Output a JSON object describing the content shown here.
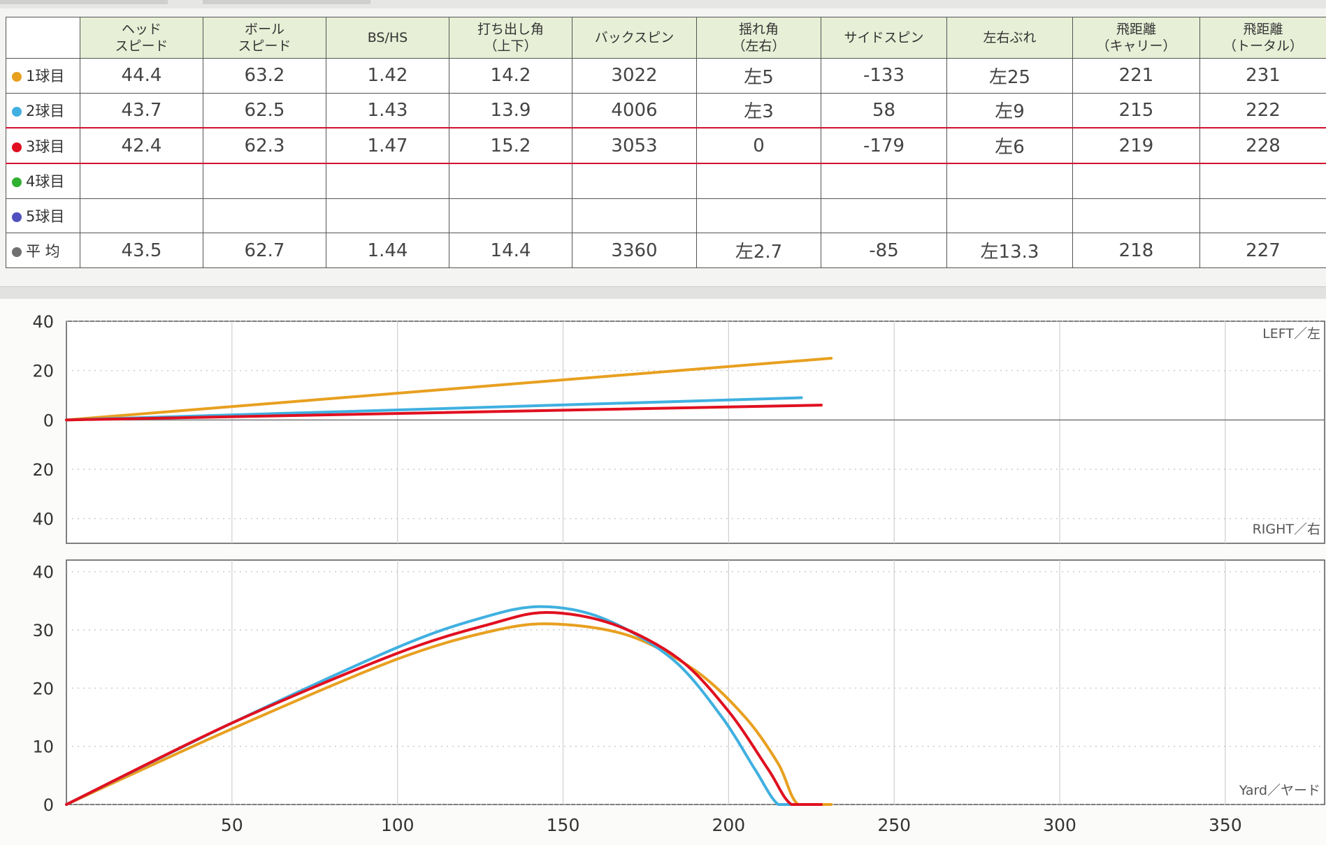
{
  "table": {
    "headers": [
      {
        "l1": "ヘッド",
        "l2": "スピード"
      },
      {
        "l1": "ボール",
        "l2": "スピード"
      },
      {
        "l1": "BS/HS",
        "l2": ""
      },
      {
        "l1": "打ち出し角",
        "l2": "（上下）"
      },
      {
        "l1": "バックスピン",
        "l2": ""
      },
      {
        "l1": "揺れ角",
        "l2": "（左右）"
      },
      {
        "l1": "サイドスピン",
        "l2": ""
      },
      {
        "l1": "左右ぶれ",
        "l2": ""
      },
      {
        "l1": "飛距離",
        "l2": "（キャリー）"
      },
      {
        "l1": "飛距離",
        "l2": "（トータル）"
      }
    ],
    "rows": [
      {
        "label": "1球目",
        "color": "#e8a020",
        "values": [
          "44.4",
          "63.2",
          "1.42",
          "14.2",
          "3022",
          "左5",
          "-133",
          "左25",
          "221",
          "231"
        ]
      },
      {
        "label": "2球目",
        "color": "#40b0e0",
        "values": [
          "43.7",
          "62.5",
          "1.43",
          "13.9",
          "4006",
          "左3",
          "58",
          "左9",
          "215",
          "222"
        ]
      },
      {
        "label": "3球目",
        "color": "#e01020",
        "values": [
          "42.4",
          "62.3",
          "1.47",
          "15.2",
          "3053",
          "0",
          "-179",
          "左6",
          "219",
          "228"
        ]
      },
      {
        "label": "4球目",
        "color": "#30b030",
        "values": [
          "",
          "",
          "",
          "",
          "",
          "",
          "",
          "",
          "",
          ""
        ]
      },
      {
        "label": "5球目",
        "color": "#5050c0",
        "values": [
          "",
          "",
          "",
          "",
          "",
          "",
          "",
          "",
          "",
          ""
        ]
      },
      {
        "label": "平 均",
        "color": "#707070",
        "values": [
          "43.5",
          "62.7",
          "1.44",
          "14.4",
          "3360",
          "左2.7",
          "-85",
          "左13.3",
          "218",
          "227"
        ]
      }
    ]
  },
  "chart_data": [
    {
      "type": "line",
      "view": "top",
      "corner_top": "LEFT／左",
      "corner_bottom": "RIGHT／右",
      "y_tick_labels": [
        "40",
        "20",
        "0",
        "20",
        "40"
      ],
      "ylim": [
        -50,
        40
      ],
      "xlim": [
        0,
        380
      ],
      "x_gridlines": [
        50,
        100,
        150,
        200,
        250,
        300,
        350
      ],
      "series": [
        {
          "color": "#e8a020",
          "points": [
            [
              0,
              0
            ],
            [
              231,
              25
            ]
          ]
        },
        {
          "color": "#40b0e0",
          "points": [
            [
              0,
              0
            ],
            [
              222,
              9
            ]
          ]
        },
        {
          "color": "#e01020",
          "points": [
            [
              0,
              0
            ],
            [
              228,
              6
            ]
          ]
        }
      ]
    },
    {
      "type": "line",
      "view": "side",
      "corner_bottom": "Yard／ヤード",
      "y_tick_labels": [
        "40",
        "30",
        "20",
        "10",
        "0"
      ],
      "ylim": [
        0,
        42
      ],
      "xlim": [
        0,
        380
      ],
      "x_tick_labels": [
        "50",
        "100",
        "150",
        "200",
        "250",
        "300",
        "350"
      ],
      "x_ticks": [
        50,
        100,
        150,
        200,
        250,
        300,
        350
      ],
      "series": [
        {
          "color": "#e8a020",
          "points": [
            [
              0,
              0
            ],
            [
              50,
              13
            ],
            [
              100,
              25
            ],
            [
              130,
              30
            ],
            [
              148,
              31
            ],
            [
              170,
              29
            ],
            [
              190,
              23
            ],
            [
              205,
              15
            ],
            [
              215,
              7
            ],
            [
              221,
              0
            ],
            [
              231,
              0
            ]
          ]
        },
        {
          "color": "#40b0e0",
          "points": [
            [
              0,
              0
            ],
            [
              50,
              14
            ],
            [
              100,
              27
            ],
            [
              125,
              32
            ],
            [
              143,
              34
            ],
            [
              162,
              32
            ],
            [
              183,
              25
            ],
            [
              198,
              15
            ],
            [
              208,
              6
            ],
            [
              215,
              0
            ],
            [
              222,
              0
            ]
          ]
        },
        {
          "color": "#e01020",
          "points": [
            [
              0,
              0
            ],
            [
              50,
              14
            ],
            [
              100,
              26
            ],
            [
              128,
              31
            ],
            [
              145,
              33
            ],
            [
              165,
              31
            ],
            [
              185,
              25
            ],
            [
              200,
              16
            ],
            [
              212,
              6
            ],
            [
              219,
              0
            ],
            [
              228,
              0
            ]
          ]
        }
      ]
    }
  ]
}
